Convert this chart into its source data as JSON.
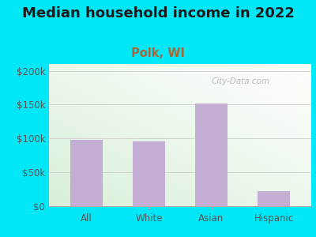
{
  "title": "Median household income in 2022",
  "subtitle": "Polk, WI",
  "categories": [
    "All",
    "White",
    "Asian",
    "Hispanic"
  ],
  "values": [
    98000,
    96000,
    152000,
    22000
  ],
  "bar_color": "#c4aed4",
  "title_fontsize": 13,
  "subtitle_fontsize": 10.5,
  "subtitle_color": "#aa6633",
  "title_color": "#1a1a1a",
  "background_outer": "#00e8f8",
  "ylim": [
    0,
    210000
  ],
  "yticks": [
    0,
    50000,
    100000,
    150000,
    200000
  ],
  "ytick_labels": [
    "$0",
    "$50k",
    "$100k",
    "$150k",
    "$200k"
  ],
  "axis_color": "#555555",
  "watermark": "City-Data.com",
  "watermark_color": "#b0b0b0",
  "grid_color": "#cccccc",
  "plot_bg_left": "#d8edd8",
  "plot_bg_right": "#f0faf0"
}
